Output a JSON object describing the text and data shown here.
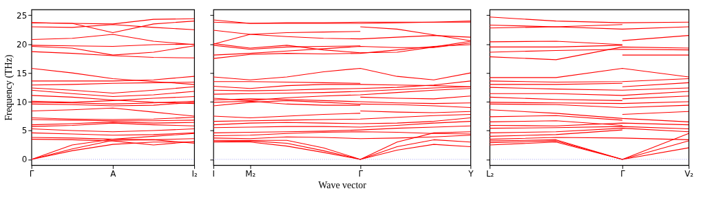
{
  "chart_data": [
    {
      "type": "line",
      "ylabel": "Frequency (THz)",
      "categories": [
        "Γ",
        null,
        "A",
        null,
        "I₂"
      ],
      "ylim": [
        -1,
        26
      ],
      "yticks": [
        0,
        5,
        10,
        15,
        20,
        25
      ],
      "line_style": "solid",
      "ref_lines": [
        {
          "axis": "y",
          "value": 0,
          "color": "#8888ee",
          "line_style": "dotted"
        }
      ],
      "series": [
        {
          "color": "#ff0000",
          "values": [
            0,
            1.5,
            2.6,
            3.0,
            3.0
          ]
        },
        {
          "color": "#ff0000",
          "values": [
            0,
            1.8,
            3.3,
            3.4,
            2.8
          ]
        },
        {
          "color": "#ff0000",
          "values": [
            0,
            2.5,
            3.5,
            4.0,
            4.5
          ]
        },
        {
          "color": "#ff0000",
          "values": [
            3.5,
            3.4,
            3.2,
            2.5,
            3.1
          ]
        },
        {
          "color": "#ff0000",
          "values": [
            3.8,
            3.7,
            3.5,
            3.4,
            3.6
          ]
        },
        {
          "color": "#ff0000",
          "values": [
            4.6,
            4.4,
            4.2,
            4.3,
            4.6
          ]
        },
        {
          "color": "#ff0000",
          "values": [
            5.3,
            5.0,
            4.8,
            5.0,
            5.3
          ]
        },
        {
          "color": "#ff0000",
          "values": [
            5.7,
            5.9,
            6.3,
            6.0,
            5.8
          ]
        },
        {
          "color": "#ff0000",
          "values": [
            6.0,
            6.2,
            6.5,
            6.3,
            6.4
          ]
        },
        {
          "color": "#ff0000",
          "values": [
            6.9,
            6.8,
            6.7,
            6.7,
            6.8
          ]
        },
        {
          "color": "#ff0000",
          "values": [
            7.2,
            7.0,
            6.9,
            7.0,
            7.3
          ]
        },
        {
          "color": "#ff0000",
          "values": [
            8.4,
            8.6,
            8.9,
            8.2,
            7.5
          ]
        },
        {
          "color": "#ff0000",
          "values": [
            9.6,
            9.5,
            9.3,
            9.4,
            9.9
          ]
        },
        {
          "color": "#ff0000",
          "values": [
            9.9,
            9.8,
            9.6,
            9.8,
            10.1
          ]
        },
        {
          "color": "#ff0000",
          "values": [
            10.1,
            9.9,
            10.2,
            10.6,
            10.9
          ]
        },
        {
          "color": "#ff0000",
          "values": [
            11.1,
            10.8,
            10.3,
            9.9,
            9.7
          ]
        },
        {
          "color": "#ff0000",
          "values": [
            12.0,
            11.4,
            10.9,
            11.2,
            11.8
          ]
        },
        {
          "color": "#ff0000",
          "values": [
            12.4,
            12.0,
            11.5,
            12.0,
            12.6
          ]
        },
        {
          "color": "#ff0000",
          "values": [
            12.9,
            13.0,
            13.2,
            13.3,
            13.4
          ]
        },
        {
          "color": "#ff0000",
          "values": [
            13.6,
            13.6,
            13.6,
            13.8,
            14.4
          ]
        },
        {
          "color": "#ff0000",
          "values": [
            15.8,
            15.0,
            14.0,
            13.5,
            13.0
          ]
        },
        {
          "color": "#ff0000",
          "values": [
            18.7,
            18.4,
            18.0,
            17.7,
            17.6
          ]
        },
        {
          "color": "#ff0000",
          "values": [
            19.6,
            19.3,
            18.1,
            18.6,
            19.7
          ]
        },
        {
          "color": "#ff0000",
          "values": [
            19.8,
            19.7,
            19.6,
            19.9,
            20.0
          ]
        },
        {
          "color": "#ff0000",
          "values": [
            20.8,
            21.0,
            21.7,
            20.5,
            19.9
          ]
        },
        {
          "color": "#ff0000",
          "values": [
            23.0,
            22.9,
            23.4,
            22.9,
            22.5
          ]
        },
        {
          "color": "#ff0000",
          "values": [
            23.7,
            23.6,
            23.5,
            24.3,
            24.4
          ]
        },
        {
          "color": "#ff0000",
          "values": [
            23.7,
            23.6,
            22.0,
            23.5,
            24.0
          ]
        }
      ]
    },
    {
      "type": "line",
      "xlabel": "Wave vector",
      "tick_labels": "x",
      "categories": [
        "I",
        "M₂",
        null,
        null,
        "Γ",
        null,
        null,
        "Y"
      ],
      "ylim": [
        -1,
        26
      ],
      "yticks": [
        0,
        5,
        10,
        15,
        20,
        25
      ],
      "line_style": "solid",
      "ref_lines": [
        {
          "axis": "y",
          "value": 0,
          "color": "#8888ee",
          "line_style": "dotted"
        }
      ],
      "series": [
        {
          "color": "#ff0000",
          "values": [
            3.0,
            3.0,
            2.3,
            1.2,
            0,
            1.6,
            2.6,
            2.2
          ]
        },
        {
          "color": "#ff0000",
          "values": [
            3.1,
            3.2,
            2.8,
            1.5,
            0,
            2.2,
            3.4,
            3.0
          ]
        },
        {
          "color": "#ff0000",
          "values": [
            3.3,
            3.3,
            3.3,
            2.0,
            0,
            3.0,
            4.6,
            4.8
          ]
        },
        {
          "color": "#ff0000",
          "values": [
            3.7,
            3.6,
            3.9,
            3.8,
            3.6,
            3.7,
            3.9,
            4.2
          ]
        },
        {
          "color": "#ff0000",
          "values": [
            4.1,
            4.2,
            4.5,
            4.7,
            4.8,
            4.7,
            4.5,
            4.4
          ]
        },
        {
          "color": "#ff0000",
          "values": [
            4.6,
            4.7,
            4.8,
            4.9,
            5.1,
            5.4,
            5.6,
            5.8
          ]
        },
        {
          "color": "#ff0000",
          "values": [
            5.5,
            5.6,
            5.7,
            5.7,
            5.6,
            5.9,
            6.3,
            6.6
          ]
        },
        {
          "color": "#ff0000",
          "values": [
            6.0,
            6.3,
            6.4,
            6.3,
            6.2,
            6.3,
            6.6,
            7.2
          ]
        },
        {
          "color": "#ff0000",
          "values": [
            6.6,
            6.7,
            6.8,
            6.9,
            7.0,
            7.3,
            7.6,
            7.8
          ]
        },
        {
          "color": "#ff0000",
          "values": [
            7.5,
            7.2,
            7.5,
            7.8,
            8.0,
            null,
            null,
            null
          ]
        },
        {
          "color": "#ff0000",
          "values": [
            null,
            null,
            null,
            null,
            8.4,
            8.2,
            8.1,
            8.3
          ]
        },
        {
          "color": "#ff0000",
          "values": [
            9.9,
            10.1,
            9.6,
            9.4,
            9.4,
            null,
            null,
            null
          ]
        },
        {
          "color": "#ff0000",
          "values": [
            9.3,
            9.9,
            10.2,
            9.9,
            9.6,
            9.5,
            9.3,
            9.0
          ]
        },
        {
          "color": "#ff0000",
          "values": [
            10.3,
            10.5,
            10.4,
            10.2,
            10.0,
            9.8,
            9.7,
            9.8
          ]
        },
        {
          "color": "#ff0000",
          "values": [
            null,
            null,
            null,
            null,
            10.8,
            10.6,
            10.5,
            11.0
          ]
        },
        {
          "color": "#ff0000",
          "values": [
            10.6,
            10.2,
            10.7,
            11.0,
            11.2,
            11.6,
            12.0,
            12.3
          ]
        },
        {
          "color": "#ff0000",
          "values": [
            11.3,
            11.4,
            11.5,
            11.6,
            11.8,
            12.1,
            12.4,
            12.6
          ]
        },
        {
          "color": "#ff0000",
          "values": [
            12.0,
            11.9,
            12.0,
            12.2,
            12.3,
            12.5,
            12.9,
            13.6
          ]
        },
        {
          "color": "#ff0000",
          "values": [
            12.7,
            12.3,
            12.8,
            13.0,
            13.0,
            12.9,
            12.8,
            12.6
          ]
        },
        {
          "color": "#ff0000",
          "values": [
            13.5,
            13.5,
            13.4,
            13.3,
            13.2,
            null,
            null,
            null
          ]
        },
        {
          "color": "#ff0000",
          "values": [
            14.3,
            13.8,
            14.3,
            15.2,
            15.8,
            14.4,
            13.8,
            15.0
          ]
        },
        {
          "color": "#ff0000",
          "values": [
            17.5,
            18.2,
            18.4,
            18.3,
            18.4,
            19.0,
            19.6,
            19.9
          ]
        },
        {
          "color": "#ff0000",
          "values": [
            20.1,
            19.3,
            19.8,
            19.0,
            18.5,
            18.6,
            19.5,
            20.5
          ]
        },
        {
          "color": "#ff0000",
          "values": [
            18.1,
            18.4,
            18.8,
            19.2,
            19.6,
            19.4,
            19.4,
            20.2
          ]
        },
        {
          "color": "#ff0000",
          "values": [
            19.8,
            19.1,
            19.5,
            19.6,
            19.7,
            null,
            null,
            null
          ]
        },
        {
          "color": "#ff0000",
          "values": [
            22.4,
            21.7,
            21.3,
            21.0,
            20.9,
            21.2,
            21.5,
            21.2
          ]
        },
        {
          "color": "#ff0000",
          "values": [
            20.0,
            21.7,
            22.0,
            22.1,
            22.2,
            null,
            null,
            null
          ]
        },
        {
          "color": "#ff0000",
          "values": [
            null,
            null,
            null,
            null,
            23.0,
            22.6,
            21.6,
            20.6
          ]
        },
        {
          "color": "#ff0000",
          "values": [
            23.8,
            23.6,
            23.6,
            23.6,
            23.6,
            23.7,
            23.8,
            24.0
          ]
        },
        {
          "color": "#ff0000",
          "values": [
            24.2,
            23.6,
            23.7,
            23.7,
            23.8,
            23.8,
            23.8,
            23.8
          ]
        }
      ]
    },
    {
      "type": "line",
      "tick_labels": "x",
      "categories": [
        "L₂",
        null,
        "Γ",
        "V₂"
      ],
      "ylim": [
        -1,
        26
      ],
      "yticks": [
        0,
        5,
        10,
        15,
        20,
        25
      ],
      "line_style": "solid",
      "ref_lines": [
        {
          "axis": "y",
          "value": 0,
          "color": "#8888ee",
          "line_style": "dotted"
        }
      ],
      "series": [
        {
          "color": "#ff0000",
          "values": [
            2.5,
            3.0,
            0,
            2.0
          ]
        },
        {
          "color": "#ff0000",
          "values": [
            2.9,
            3.2,
            0,
            3.2
          ]
        },
        {
          "color": "#ff0000",
          "values": [
            3.2,
            3.4,
            0,
            4.5
          ]
        },
        {
          "color": "#ff0000",
          "values": [
            3.5,
            3.8,
            3.7,
            3.4
          ]
        },
        {
          "color": "#ff0000",
          "values": [
            4.0,
            4.3,
            5.1,
            null
          ]
        },
        {
          "color": "#ff0000",
          "values": [
            4.6,
            4.8,
            5.4,
            4.8
          ]
        },
        {
          "color": "#ff0000",
          "values": [
            5.4,
            5.5,
            5.7,
            5.3
          ]
        },
        {
          "color": "#ff0000",
          "values": [
            5.9,
            5.8,
            6.3,
            6.0
          ]
        },
        {
          "color": "#ff0000",
          "values": [
            6.5,
            6.7,
            5.9,
            null
          ]
        },
        {
          "color": "#ff0000",
          "values": [
            8.6,
            8.0,
            7.1,
            6.5
          ]
        },
        {
          "color": "#ff0000",
          "values": [
            7.4,
            7.6,
            6.8,
            null
          ]
        },
        {
          "color": "#ff0000",
          "values": [
            null,
            null,
            7.8,
            8.3
          ]
        },
        {
          "color": "#ff0000",
          "values": [
            9.6,
            9.5,
            9.0,
            9.4
          ]
        },
        {
          "color": "#ff0000",
          "values": [
            9.9,
            9.8,
            9.7,
            10.0
          ]
        },
        {
          "color": "#ff0000",
          "values": [
            10.8,
            10.4,
            10.2,
            null
          ]
        },
        {
          "color": "#ff0000",
          "values": [
            null,
            null,
            10.5,
            11.0
          ]
        },
        {
          "color": "#ff0000",
          "values": [
            11.4,
            11.4,
            11.1,
            11.8
          ]
        },
        {
          "color": "#ff0000",
          "values": [
            12.5,
            12.2,
            12.0,
            12.4
          ]
        },
        {
          "color": "#ff0000",
          "values": [
            null,
            null,
            12.6,
            13.3
          ]
        },
        {
          "color": "#ff0000",
          "values": [
            13.0,
            13.0,
            13.2,
            null
          ]
        },
        {
          "color": "#ff0000",
          "values": [
            13.6,
            13.4,
            13.5,
            14.0
          ]
        },
        {
          "color": "#ff0000",
          "values": [
            14.2,
            14.2,
            15.8,
            14.3
          ]
        },
        {
          "color": "#ff0000",
          "values": [
            null,
            null,
            18.1,
            18.1
          ]
        },
        {
          "color": "#ff0000",
          "values": [
            18.6,
            18.9,
            19.1,
            19.0
          ]
        },
        {
          "color": "#ff0000",
          "values": [
            17.8,
            17.3,
            19.5,
            19.3
          ]
        },
        {
          "color": "#ff0000",
          "values": [
            19.5,
            19.5,
            19.8,
            null
          ]
        },
        {
          "color": "#ff0000",
          "values": [
            20.4,
            20.5,
            19.9,
            null
          ]
        },
        {
          "color": "#ff0000",
          "values": [
            null,
            null,
            20.6,
            21.5
          ]
        },
        {
          "color": "#ff0000",
          "values": [
            22.8,
            23.0,
            22.6,
            23.0
          ]
        },
        {
          "color": "#ff0000",
          "values": [
            23.3,
            23.0,
            23.4,
            null
          ]
        },
        {
          "color": "#ff0000",
          "values": [
            24.7,
            24.0,
            23.7,
            23.8
          ]
        }
      ]
    }
  ]
}
